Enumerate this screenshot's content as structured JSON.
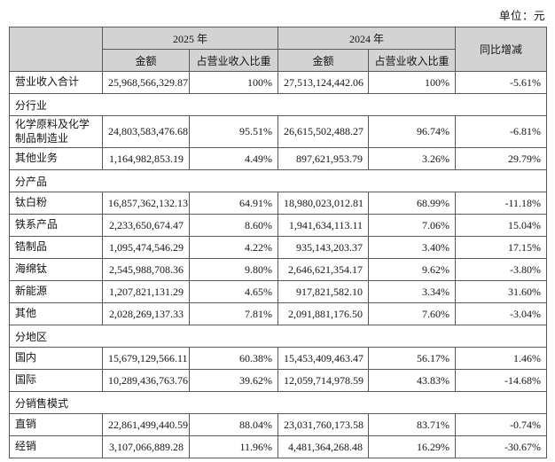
{
  "meta": {
    "unit_label": "单位：元"
  },
  "table": {
    "headers": {
      "year_2025": "2025 年",
      "year_2024": "2024 年",
      "amount": "金额",
      "ratio": "占营业收入比重",
      "yoy": "同比增减"
    },
    "colors": {
      "header_bg": "#d3d3d3",
      "border": "#595959"
    },
    "rows": [
      {
        "type": "data",
        "label": "营业收入合计",
        "a25": "25,968,566,329.87",
        "r25": "100%",
        "a24": "27,513,124,442.06",
        "r24": "100%",
        "yoy": "-5.61%",
        "shaded": true
      },
      {
        "type": "section",
        "label": "分行业"
      },
      {
        "type": "data",
        "label": "化学原料及化学制品制造业",
        "a25": "24,803,583,476.68",
        "r25": "95.51%",
        "a24": "26,615,502,488.27",
        "r24": "96.74%",
        "yoy": "-6.81%"
      },
      {
        "type": "data",
        "label": "其他业务",
        "a25": "1,164,982,853.19",
        "r25": "4.49%",
        "a24": "897,621,953.79",
        "r24": "3.26%",
        "yoy": "29.79%"
      },
      {
        "type": "section",
        "label": "分产品"
      },
      {
        "type": "data",
        "label": "钛白粉",
        "a25": "16,857,362,132.13",
        "r25": "64.91%",
        "a24": "18,980,023,012.81",
        "r24": "68.99%",
        "yoy": "-11.18%"
      },
      {
        "type": "data",
        "label": "铁系产品",
        "a25": "2,233,650,674.47",
        "r25": "8.60%",
        "a24": "1,941,634,113.11",
        "r24": "7.06%",
        "yoy": "15.04%"
      },
      {
        "type": "data",
        "label": "锆制品",
        "a25": "1,095,474,546.29",
        "r25": "4.22%",
        "a24": "935,143,203.37",
        "r24": "3.40%",
        "yoy": "17.15%"
      },
      {
        "type": "data",
        "label": "海绵钛",
        "a25": "2,545,988,708.36",
        "r25": "9.80%",
        "a24": "2,646,621,354.17",
        "r24": "9.62%",
        "yoy": "-3.80%"
      },
      {
        "type": "data",
        "label": "新能源",
        "a25": "1,207,821,131.29",
        "r25": "4.65%",
        "a24": "917,821,582.10",
        "r24": "3.34%",
        "yoy": "31.60%"
      },
      {
        "type": "data",
        "label": "其他",
        "a25": "2,028,269,137.33",
        "r25": "7.81%",
        "a24": "2,091,881,176.50",
        "r24": "7.60%",
        "yoy": "-3.04%"
      },
      {
        "type": "section",
        "label": "分地区"
      },
      {
        "type": "data",
        "label": "国内",
        "a25": "15,679,129,566.11",
        "r25": "60.38%",
        "a24": "15,453,409,463.47",
        "r24": "56.17%",
        "yoy": "1.46%"
      },
      {
        "type": "data",
        "label": "国际",
        "a25": "10,289,436,763.76",
        "r25": "39.62%",
        "a24": "12,059,714,978.59",
        "r24": "43.83%",
        "yoy": "-14.68%"
      },
      {
        "type": "section",
        "label": "分销售模式"
      },
      {
        "type": "data",
        "label": "直销",
        "a25": "22,861,499,440.59",
        "r25": "88.04%",
        "a24": "23,031,760,173.58",
        "r24": "83.71%",
        "yoy": "-0.74%"
      },
      {
        "type": "data",
        "label": "经销",
        "a25": "3,107,066,889.28",
        "r25": "11.96%",
        "a24": "4,481,364,268.48",
        "r24": "16.29%",
        "yoy": "-30.67%"
      }
    ]
  }
}
